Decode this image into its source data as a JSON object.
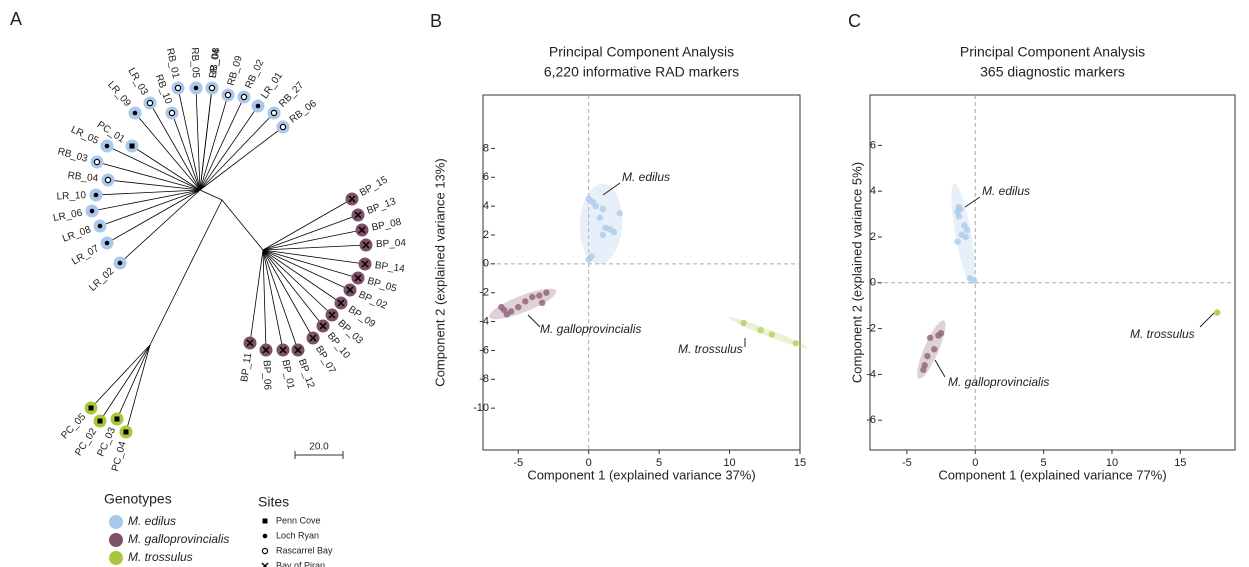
{
  "panel_labels": [
    "A",
    "B",
    "C"
  ],
  "tree": {
    "scale_bar": "20.0",
    "clades": [
      {
        "leaves": [
          "LR_02",
          "LR_07",
          "LR_08",
          "LR_06",
          "LR_10",
          "RB_04",
          "RB_03",
          "LR_05",
          "PC_01",
          "LR_09",
          "LR_03",
          "RB_10",
          "RB_01",
          "RB_05",
          "LR_04",
          "RB_08",
          "RB_09",
          "RB_02",
          "LR_01",
          "RB_27",
          "RB_06"
        ]
      },
      {
        "leaves": [
          "BP_15",
          "BP_13",
          "BP_08",
          "BP_04",
          "BP_14",
          "BP_05",
          "BP_02",
          "BP_09",
          "BP_03",
          "BP_10",
          "BP_07",
          "BP_12",
          "BP_01",
          "BP_06",
          "BP_11"
        ]
      },
      {
        "leaves": [
          "PC_05",
          "PC_02",
          "PC_03",
          "PC_04"
        ]
      }
    ]
  },
  "legend": {
    "genotypes_title": "Genotypes",
    "genotypes": [
      {
        "name": "M. edilus",
        "color": "#a9c8ea"
      },
      {
        "name": "M. galloprovincialis",
        "color": "#7d5267"
      },
      {
        "name": "M. trossulus",
        "color": "#a8c83c"
      }
    ],
    "sites_title": "Sites",
    "sites": [
      "Penn Cove",
      "Loch Ryan",
      "Rascarrel Bay",
      "Bay of Piran"
    ]
  },
  "chart_data": [
    {
      "type": "scatter",
      "title": "Principal Component Analysis",
      "subtitle": "6,220 informative RAD markers",
      "x_label": "Component 1 (explained variance 37%)",
      "y_label": "Component 2 (explained variance 13%)",
      "xlim": [
        -7.5,
        15
      ],
      "ylim": [
        -12.9,
        11.7
      ],
      "xticks": [
        -5,
        0,
        5,
        10,
        15
      ],
      "yticks": [
        -10,
        -8,
        -6,
        -4,
        -2,
        0,
        2,
        4,
        6,
        8
      ],
      "series": [
        {
          "name": "M. edilus",
          "color": "#aecbec",
          "x": [
            0,
            0.3,
            0.5,
            1,
            0.8,
            1.2,
            1.5,
            1.8,
            1.0,
            2.2,
            0.2,
            0
          ],
          "values": [
            4.5,
            4.3,
            4.0,
            3.8,
            3.2,
            2.5,
            2.4,
            2.2,
            2.0,
            3.5,
            0.5,
            0.3
          ]
        },
        {
          "name": "M. galloprovincialis",
          "color": "#94687c",
          "x": [
            -6,
            -5.8,
            -5.5,
            -5,
            -4,
            -3.5,
            -3.3,
            -3,
            -4.5,
            -6.2
          ],
          "values": [
            -3.2,
            -3.5,
            -3.3,
            -3.0,
            -2.3,
            -2.2,
            -2.7,
            -2.0,
            -2.6,
            -3.0
          ]
        },
        {
          "name": "M. trossulus",
          "color": "#b6d36b",
          "x": [
            11,
            12.2,
            13,
            14.7
          ],
          "values": [
            -4.1,
            -4.6,
            -4.9,
            -5.5
          ]
        }
      ]
    },
    {
      "type": "scatter",
      "title": "Principal Component Analysis",
      "subtitle": "365 diagnostic markers",
      "x_label": "Component 1 (explained variance 77%)",
      "y_label": "Component 2 (explained variance 5%)",
      "xlim": [
        -7.7,
        19
      ],
      "ylim": [
        -7.3,
        8.2
      ],
      "xticks": [
        -5,
        0,
        5,
        10,
        15
      ],
      "yticks": [
        -6,
        -4,
        -2,
        0,
        2,
        4,
        6
      ],
      "series": [
        {
          "name": "M. edilus",
          "color": "#aecbec",
          "x": [
            -1.2,
            -1.3,
            -1.1,
            -1.2,
            -0.8,
            -0.7,
            -1.0,
            -1.3,
            -0.6,
            -0.4,
            -0.1
          ],
          "values": [
            3.3,
            3.1,
            3.2,
            2.9,
            2.5,
            2.0,
            2.1,
            1.8,
            2.3,
            0.2,
            0.1
          ]
        },
        {
          "name": "M. galloprovincialis",
          "color": "#94687c",
          "x": [
            -3.8,
            -3.7,
            -3.0,
            -2.7,
            -2.5,
            -3.3,
            -3.5
          ],
          "values": [
            -3.8,
            -3.6,
            -2.9,
            -2.3,
            -2.2,
            -2.4,
            -3.2
          ]
        },
        {
          "name": "M. trossulus",
          "color": "#a8c83c",
          "x": [
            17.7
          ],
          "values": [
            -1.3
          ]
        }
      ]
    }
  ]
}
